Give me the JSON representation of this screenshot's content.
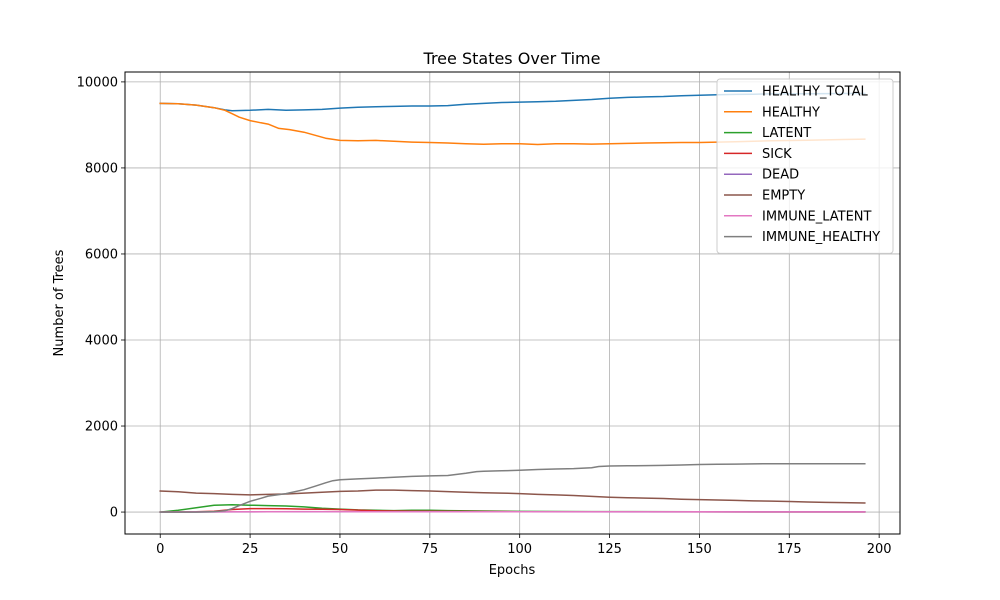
{
  "chart_data": {
    "type": "line",
    "title": "Tree States Over Time",
    "xlabel": "Epochs",
    "ylabel": "Number of Trees",
    "xlim": [
      -9.8,
      205.8
    ],
    "ylim": [
      -510,
      10230
    ],
    "xticks": [
      0,
      25,
      50,
      75,
      100,
      125,
      150,
      175,
      200
    ],
    "yticks": [
      0,
      2000,
      4000,
      6000,
      8000,
      10000
    ],
    "grid": true,
    "legend_position": "top-right",
    "series": [
      {
        "name": "HEALTHY_TOTAL",
        "color": "#1f77b4",
        "points": [
          [
            0,
            9500
          ],
          [
            5,
            9490
          ],
          [
            10,
            9460
          ],
          [
            15,
            9400
          ],
          [
            18,
            9350
          ],
          [
            20,
            9330
          ],
          [
            25,
            9340
          ],
          [
            30,
            9360
          ],
          [
            35,
            9340
          ],
          [
            40,
            9350
          ],
          [
            45,
            9360
          ],
          [
            50,
            9390
          ],
          [
            55,
            9410
          ],
          [
            60,
            9420
          ],
          [
            65,
            9430
          ],
          [
            70,
            9440
          ],
          [
            75,
            9440
          ],
          [
            80,
            9450
          ],
          [
            85,
            9480
          ],
          [
            90,
            9500
          ],
          [
            95,
            9520
          ],
          [
            100,
            9530
          ],
          [
            105,
            9540
          ],
          [
            110,
            9550
          ],
          [
            115,
            9570
          ],
          [
            120,
            9590
          ],
          [
            125,
            9620
          ],
          [
            130,
            9640
          ],
          [
            135,
            9650
          ],
          [
            140,
            9660
          ],
          [
            145,
            9680
          ],
          [
            150,
            9690
          ],
          [
            155,
            9700
          ],
          [
            160,
            9710
          ],
          [
            165,
            9715
          ],
          [
            170,
            9720
          ],
          [
            175,
            9725
          ],
          [
            180,
            9725
          ],
          [
            185,
            9728
          ],
          [
            190,
            9730
          ],
          [
            196,
            9730
          ]
        ]
      },
      {
        "name": "HEALTHY",
        "color": "#ff7f0e",
        "points": [
          [
            0,
            9500
          ],
          [
            5,
            9490
          ],
          [
            10,
            9460
          ],
          [
            15,
            9400
          ],
          [
            18,
            9340
          ],
          [
            20,
            9260
          ],
          [
            22,
            9180
          ],
          [
            25,
            9100
          ],
          [
            28,
            9050
          ],
          [
            30,
            9020
          ],
          [
            33,
            8920
          ],
          [
            36,
            8890
          ],
          [
            40,
            8830
          ],
          [
            43,
            8760
          ],
          [
            46,
            8690
          ],
          [
            50,
            8640
          ],
          [
            55,
            8630
          ],
          [
            60,
            8640
          ],
          [
            65,
            8620
          ],
          [
            70,
            8600
          ],
          [
            75,
            8590
          ],
          [
            80,
            8580
          ],
          [
            85,
            8560
          ],
          [
            90,
            8550
          ],
          [
            95,
            8560
          ],
          [
            100,
            8560
          ],
          [
            105,
            8545
          ],
          [
            110,
            8560
          ],
          [
            115,
            8560
          ],
          [
            120,
            8555
          ],
          [
            125,
            8560
          ],
          [
            130,
            8570
          ],
          [
            135,
            8580
          ],
          [
            140,
            8585
          ],
          [
            145,
            8590
          ],
          [
            150,
            8590
          ],
          [
            155,
            8600
          ],
          [
            160,
            8610
          ],
          [
            170,
            8630
          ],
          [
            180,
            8645
          ],
          [
            190,
            8660
          ],
          [
            196,
            8670
          ]
        ]
      },
      {
        "name": "LATENT",
        "color": "#2ca02c",
        "points": [
          [
            0,
            0
          ],
          [
            5,
            40
          ],
          [
            10,
            100
          ],
          [
            15,
            160
          ],
          [
            20,
            170
          ],
          [
            25,
            160
          ],
          [
            30,
            150
          ],
          [
            35,
            140
          ],
          [
            40,
            120
          ],
          [
            45,
            90
          ],
          [
            50,
            70
          ],
          [
            55,
            50
          ],
          [
            60,
            40
          ],
          [
            65,
            35
          ],
          [
            70,
            40
          ],
          [
            75,
            40
          ],
          [
            80,
            35
          ],
          [
            90,
            25
          ],
          [
            100,
            15
          ],
          [
            120,
            10
          ],
          [
            150,
            5
          ],
          [
            196,
            3
          ]
        ]
      },
      {
        "name": "SICK",
        "color": "#d62728",
        "points": [
          [
            0,
            0
          ],
          [
            10,
            5
          ],
          [
            15,
            20
          ],
          [
            20,
            60
          ],
          [
            25,
            80
          ],
          [
            30,
            80
          ],
          [
            35,
            75
          ],
          [
            40,
            70
          ],
          [
            45,
            65
          ],
          [
            50,
            60
          ],
          [
            55,
            45
          ],
          [
            60,
            30
          ],
          [
            70,
            20
          ],
          [
            80,
            15
          ],
          [
            100,
            8
          ],
          [
            130,
            5
          ],
          [
            196,
            3
          ]
        ]
      },
      {
        "name": "DEAD",
        "color": "#9467bd",
        "points": [
          [
            0,
            0
          ],
          [
            20,
            3
          ],
          [
            30,
            5
          ],
          [
            50,
            6
          ],
          [
            100,
            5
          ],
          [
            150,
            4
          ],
          [
            196,
            3
          ]
        ]
      },
      {
        "name": "EMPTY",
        "color": "#8c564b",
        "points": [
          [
            0,
            490
          ],
          [
            5,
            470
          ],
          [
            10,
            440
          ],
          [
            15,
            430
          ],
          [
            20,
            410
          ],
          [
            25,
            400
          ],
          [
            30,
            410
          ],
          [
            35,
            420
          ],
          [
            40,
            440
          ],
          [
            45,
            460
          ],
          [
            50,
            480
          ],
          [
            55,
            490
          ],
          [
            60,
            510
          ],
          [
            65,
            510
          ],
          [
            70,
            500
          ],
          [
            75,
            490
          ],
          [
            80,
            475
          ],
          [
            85,
            460
          ],
          [
            90,
            450
          ],
          [
            95,
            440
          ],
          [
            100,
            430
          ],
          [
            105,
            410
          ],
          [
            110,
            400
          ],
          [
            115,
            385
          ],
          [
            120,
            365
          ],
          [
            125,
            345
          ],
          [
            130,
            335
          ],
          [
            135,
            325
          ],
          [
            140,
            315
          ],
          [
            145,
            300
          ],
          [
            150,
            290
          ],
          [
            155,
            280
          ],
          [
            160,
            270
          ],
          [
            165,
            260
          ],
          [
            170,
            255
          ],
          [
            175,
            245
          ],
          [
            180,
            235
          ],
          [
            185,
            225
          ],
          [
            190,
            220
          ],
          [
            196,
            210
          ]
        ]
      },
      {
        "name": "IMMUNE_LATENT",
        "color": "#e377c2",
        "points": [
          [
            0,
            0
          ],
          [
            20,
            5
          ],
          [
            40,
            10
          ],
          [
            60,
            8
          ],
          [
            100,
            6
          ],
          [
            150,
            5
          ],
          [
            196,
            4
          ]
        ]
      },
      {
        "name": "IMMUNE_HEALTHY",
        "color": "#7f7f7f",
        "points": [
          [
            0,
            0
          ],
          [
            10,
            0
          ],
          [
            15,
            10
          ],
          [
            18,
            30
          ],
          [
            20,
            80
          ],
          [
            22,
            150
          ],
          [
            25,
            250
          ],
          [
            28,
            320
          ],
          [
            30,
            370
          ],
          [
            35,
            430
          ],
          [
            40,
            520
          ],
          [
            43,
            600
          ],
          [
            46,
            680
          ],
          [
            48,
            730
          ],
          [
            50,
            750
          ],
          [
            55,
            770
          ],
          [
            60,
            790
          ],
          [
            65,
            810
          ],
          [
            70,
            830
          ],
          [
            75,
            840
          ],
          [
            80,
            850
          ],
          [
            85,
            900
          ],
          [
            88,
            940
          ],
          [
            90,
            950
          ],
          [
            95,
            960
          ],
          [
            100,
            970
          ],
          [
            105,
            990
          ],
          [
            110,
            1000
          ],
          [
            115,
            1010
          ],
          [
            120,
            1030
          ],
          [
            122,
            1060
          ],
          [
            125,
            1070
          ],
          [
            130,
            1075
          ],
          [
            135,
            1080
          ],
          [
            140,
            1085
          ],
          [
            145,
            1095
          ],
          [
            150,
            1105
          ],
          [
            155,
            1110
          ],
          [
            160,
            1115
          ],
          [
            165,
            1120
          ],
          [
            170,
            1125
          ],
          [
            175,
            1125
          ],
          [
            180,
            1125
          ],
          [
            185,
            1125
          ],
          [
            190,
            1125
          ],
          [
            196,
            1125
          ]
        ]
      }
    ]
  }
}
